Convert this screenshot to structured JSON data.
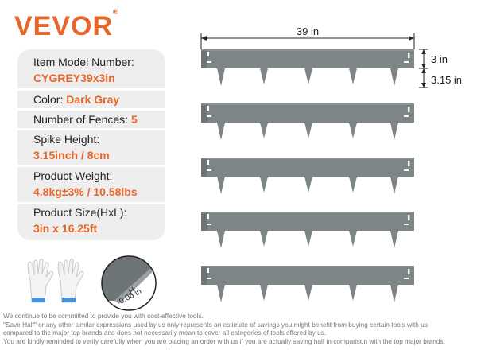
{
  "brand": {
    "name": "VEVOR",
    "mark": "®"
  },
  "specs": {
    "model_label": "Item Model Number:",
    "model_value": "CYGREY39x3in",
    "color_label": "Color:",
    "color_value": "Dark Gray",
    "fences_label": "Number of Fences:",
    "fences_value": "5",
    "spike_label": "Spike Height:",
    "spike_value": "3.15inch / 8cm",
    "weight_label": "Product Weight:",
    "weight_value": "4.8kg±3% / 10.58lbs",
    "size_label": "Product Size(HxL):",
    "size_value": "3in x 16.25ft"
  },
  "dimensions": {
    "length": "39 in",
    "height": "3 in",
    "spike": "3.15 in",
    "thickness_label": "H",
    "thickness_value": "0.06 in"
  },
  "disclaimer": [
    "We continue to be committed to provide you with cost-effective tools.",
    "\"Save Half\" or any other similar expressions used by us only represents an estimate of savings you might benefit from buying certain tools with us",
    "compared to the major top brands and does not necessarily mean to cover all categories of tools offered by us.",
    "You are kindly reminded to verify carefully when you are placing an order with us if you are actually saving half in comparison with the top major brands."
  ],
  "colors": {
    "accent": "#e8662a",
    "fence": "#7e8587",
    "panel": "#eeeeee"
  }
}
